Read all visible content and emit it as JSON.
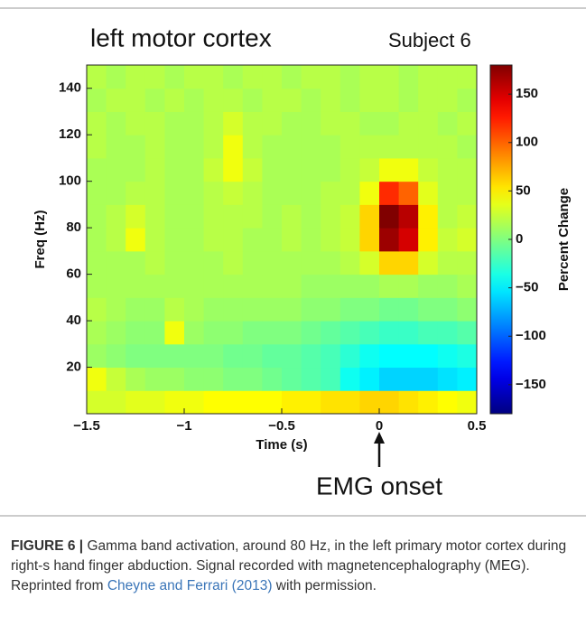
{
  "chart_data": {
    "type": "heatmap",
    "title": "left motor cortex",
    "subtitle": "Subject 6",
    "x_label": "Time (s)",
    "y_label": "Freq (Hz)",
    "colorbar_label": "Percent Change",
    "annotation": "EMG onset",
    "annotation_x": 0,
    "colormap": "jet",
    "x": [
      -1.45,
      -1.35,
      -1.25,
      -1.15,
      -1.05,
      -0.95,
      -0.85,
      -0.75,
      -0.65,
      -0.55,
      -0.45,
      -0.35,
      -0.25,
      -0.15,
      -0.05,
      0.05,
      0.15,
      0.25,
      0.35,
      0.45
    ],
    "y": [
      5,
      15,
      25,
      35,
      45,
      55,
      65,
      75,
      85,
      95,
      105,
      115,
      125,
      135,
      145
    ],
    "z": [
      [
        30,
        30,
        35,
        35,
        40,
        40,
        45,
        45,
        45,
        45,
        50,
        50,
        55,
        55,
        60,
        60,
        55,
        50,
        45,
        40
      ],
      [
        40,
        25,
        15,
        10,
        10,
        5,
        5,
        0,
        0,
        -5,
        -10,
        -15,
        -20,
        -40,
        -50,
        -60,
        -60,
        -60,
        -55,
        -50
      ],
      [
        10,
        5,
        0,
        0,
        0,
        0,
        0,
        -5,
        -5,
        -10,
        -10,
        -15,
        -20,
        -30,
        -40,
        -45,
        -45,
        -45,
        -40,
        -35
      ],
      [
        15,
        10,
        5,
        5,
        40,
        10,
        5,
        5,
        0,
        0,
        0,
        -5,
        -10,
        -15,
        -20,
        -25,
        -25,
        -20,
        -20,
        -15
      ],
      [
        20,
        15,
        10,
        10,
        20,
        15,
        10,
        10,
        10,
        10,
        10,
        5,
        5,
        0,
        0,
        -5,
        -5,
        0,
        0,
        5
      ],
      [
        15,
        15,
        15,
        15,
        15,
        15,
        15,
        15,
        15,
        15,
        15,
        10,
        10,
        10,
        10,
        15,
        15,
        10,
        10,
        15
      ],
      [
        15,
        15,
        15,
        20,
        15,
        15,
        15,
        20,
        15,
        15,
        15,
        15,
        15,
        20,
        30,
        60,
        60,
        30,
        20,
        20
      ],
      [
        15,
        20,
        40,
        20,
        15,
        15,
        20,
        20,
        15,
        15,
        20,
        15,
        20,
        25,
        60,
        170,
        150,
        50,
        25,
        30
      ],
      [
        15,
        20,
        30,
        20,
        15,
        15,
        20,
        20,
        20,
        15,
        20,
        15,
        20,
        25,
        60,
        180,
        160,
        50,
        20,
        25
      ],
      [
        15,
        15,
        20,
        20,
        15,
        15,
        20,
        25,
        20,
        15,
        15,
        15,
        20,
        20,
        40,
        120,
        100,
        35,
        20,
        20
      ],
      [
        15,
        15,
        15,
        20,
        15,
        15,
        25,
        40,
        25,
        15,
        15,
        15,
        15,
        20,
        25,
        40,
        40,
        25,
        20,
        20
      ],
      [
        20,
        15,
        15,
        20,
        15,
        15,
        20,
        40,
        20,
        15,
        15,
        15,
        15,
        20,
        20,
        20,
        20,
        20,
        20,
        15
      ],
      [
        20,
        15,
        20,
        20,
        15,
        15,
        20,
        30,
        20,
        20,
        15,
        15,
        20,
        20,
        15,
        15,
        20,
        20,
        15,
        20
      ],
      [
        15,
        20,
        20,
        15,
        20,
        15,
        20,
        20,
        15,
        20,
        20,
        15,
        20,
        15,
        20,
        20,
        15,
        20,
        20,
        15
      ],
      [
        20,
        15,
        20,
        20,
        15,
        20,
        20,
        15,
        20,
        20,
        15,
        20,
        20,
        15,
        20,
        20,
        15,
        20,
        20,
        20
      ]
    ],
    "xlim": [
      -1.5,
      0.5
    ],
    "xticks": [
      {
        "value": -1.5,
        "label": "−1.5"
      },
      {
        "value": -1,
        "label": "−1"
      },
      {
        "value": -0.5,
        "label": "−0.5"
      },
      0,
      0.5
    ],
    "ylim": [
      0,
      150
    ],
    "yticks": [
      20,
      40,
      60,
      80,
      100,
      120,
      140
    ],
    "clim": [
      -180,
      180
    ],
    "cticks": [
      {
        "value": -150,
        "label": "−150"
      },
      {
        "value": -100,
        "label": "−100"
      },
      {
        "value": -50,
        "label": "−50"
      },
      0,
      50,
      100,
      150
    ]
  },
  "caption": {
    "label": "FIGURE 6",
    "separator": "|",
    "text": "Gamma band activation, around 80 Hz, in the left primary motor cortex during right-s hand finger abduction. Signal recorded with magnetencephalography (MEG). Reprinted from",
    "link": "Cheyne and Ferrari (2013)",
    "text_after": "with permission."
  }
}
